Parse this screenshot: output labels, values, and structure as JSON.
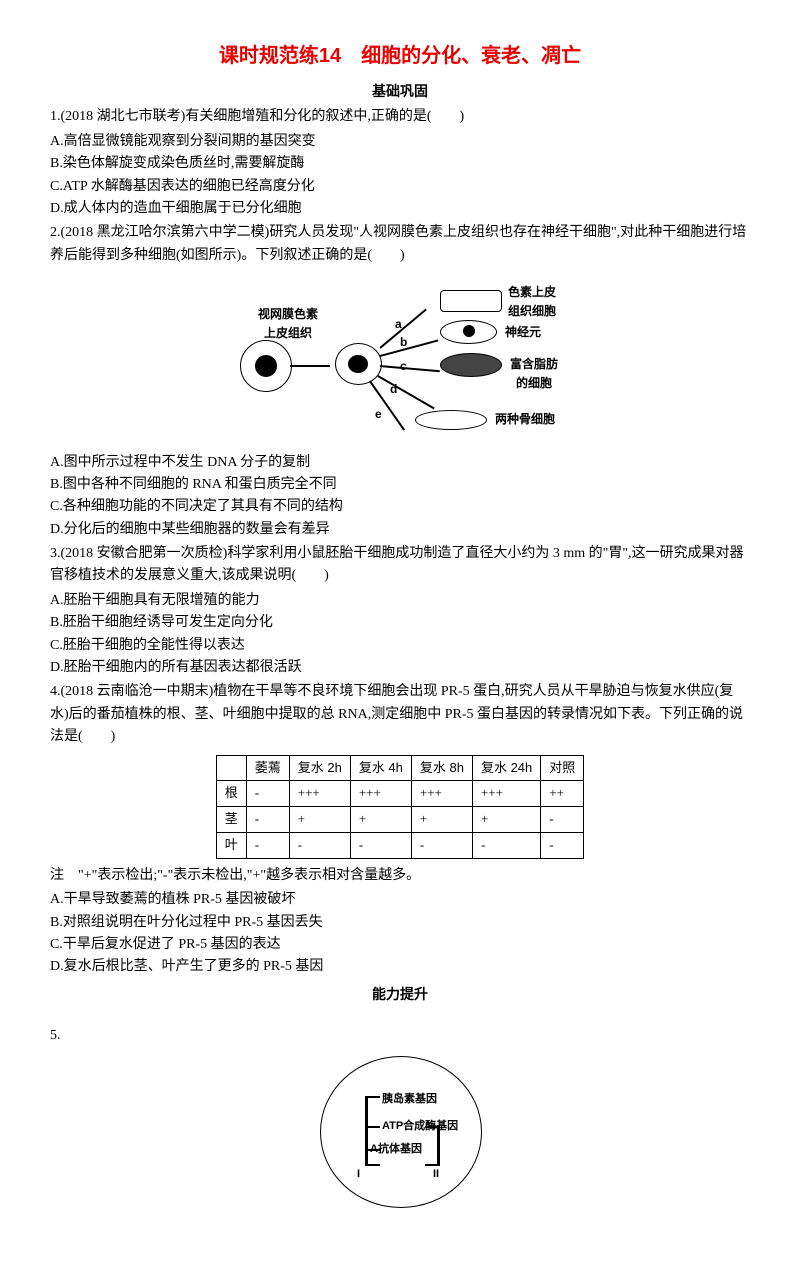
{
  "title": "课时规范练14　细胞的分化、衰老、凋亡",
  "section1": "基础巩固",
  "q1": {
    "stem": "1.(2018 湖北七市联考)有关细胞增殖和分化的叙述中,正确的是(　　)",
    "A": "A.高倍显微镜能观察到分裂间期的基因突变",
    "B": "B.染色体解旋变成染色质丝时,需要解旋酶",
    "C": "C.ATP 水解酶基因表达的细胞已经高度分化",
    "D": "D.成人体内的造血干细胞属于已分化细胞"
  },
  "q2": {
    "stem": "2.(2018 黑龙江哈尔滨第六中学二模)研究人员发现\"人视网膜色素上皮组织也存在神经干细胞\",对此种干细胞进行培养后能得到多种细胞(如图所示)。下列叙述正确的是(　　)",
    "A": "A.图中所示过程中不发生 DNA 分子的复制",
    "B": "B.图中各种不同细胞的 RNA 和蛋白质完全不同",
    "C": "C.各种细胞功能的不同决定了其具有不同的结构",
    "D": "D.分化后的细胞中某些细胞器的数量会有差异"
  },
  "diagram1": {
    "left_label": "视网膜色素\n上皮组织",
    "top_right": "色素上皮\n组织细胞",
    "mid_right": "神经元",
    "fat_label": "富含脂肪的细胞",
    "bone_label": "两种骨细胞",
    "letters": {
      "a": "a",
      "b": "b",
      "c": "c",
      "d": "d",
      "e": "e"
    }
  },
  "q3": {
    "stem": "3.(2018 安徽合肥第一次质检)科学家利用小鼠胚胎干细胞成功制造了直径大小约为 3 mm 的\"胃\",这一研究成果对器官移植技术的发展意义重大,该成果说明(　　)",
    "A": "A.胚胎干细胞具有无限增殖的能力",
    "B": "B.胚胎干细胞经诱导可发生定向分化",
    "C": "C.胚胎干细胞的全能性得以表达",
    "D": "D.胚胎干细胞内的所有基因表达都很活跃"
  },
  "q4": {
    "stem": "4.(2018 云南临沧一中期末)植物在干旱等不良环境下细胞会出现 PR-5 蛋白,研究人员从干旱胁迫与恢复水供应(复水)后的番茄植株的根、茎、叶细胞中提取的总 RNA,测定细胞中 PR-5 蛋白基因的转录情况如下表。下列正确的说法是(　　)",
    "headers": [
      "",
      "萎蔫",
      "复水 2h",
      "复水 4h",
      "复水 8h",
      "复水 24h",
      "对照"
    ],
    "rows": [
      [
        "根",
        "-",
        "+++",
        "+++",
        "+++",
        "+++",
        "++"
      ],
      [
        "茎",
        "-",
        "+",
        "+",
        "+",
        "+",
        "-"
      ],
      [
        "叶",
        "-",
        "-",
        "-",
        "-",
        "-",
        "-"
      ]
    ],
    "note": "注　\"+\"表示检出;\"-\"表示未检出,\"+\"越多表示相对含量越多。",
    "A": "A.干旱导致萎蔫的植株 PR-5 基因被破坏",
    "B": "B.对照组说明在叶分化过程中 PR-5 基因丢失",
    "C": "C.干旱后复水促进了 PR-5 基因的表达",
    "D": "D.复水后根比茎、叶产生了更多的 PR-5 基因"
  },
  "section2": "能力提升",
  "q5": "5.",
  "diagram2": {
    "top": "胰岛素基因",
    "mid": "ATP合成酶基因",
    "bot": "A抗体基因",
    "I": "I",
    "II": "II"
  }
}
